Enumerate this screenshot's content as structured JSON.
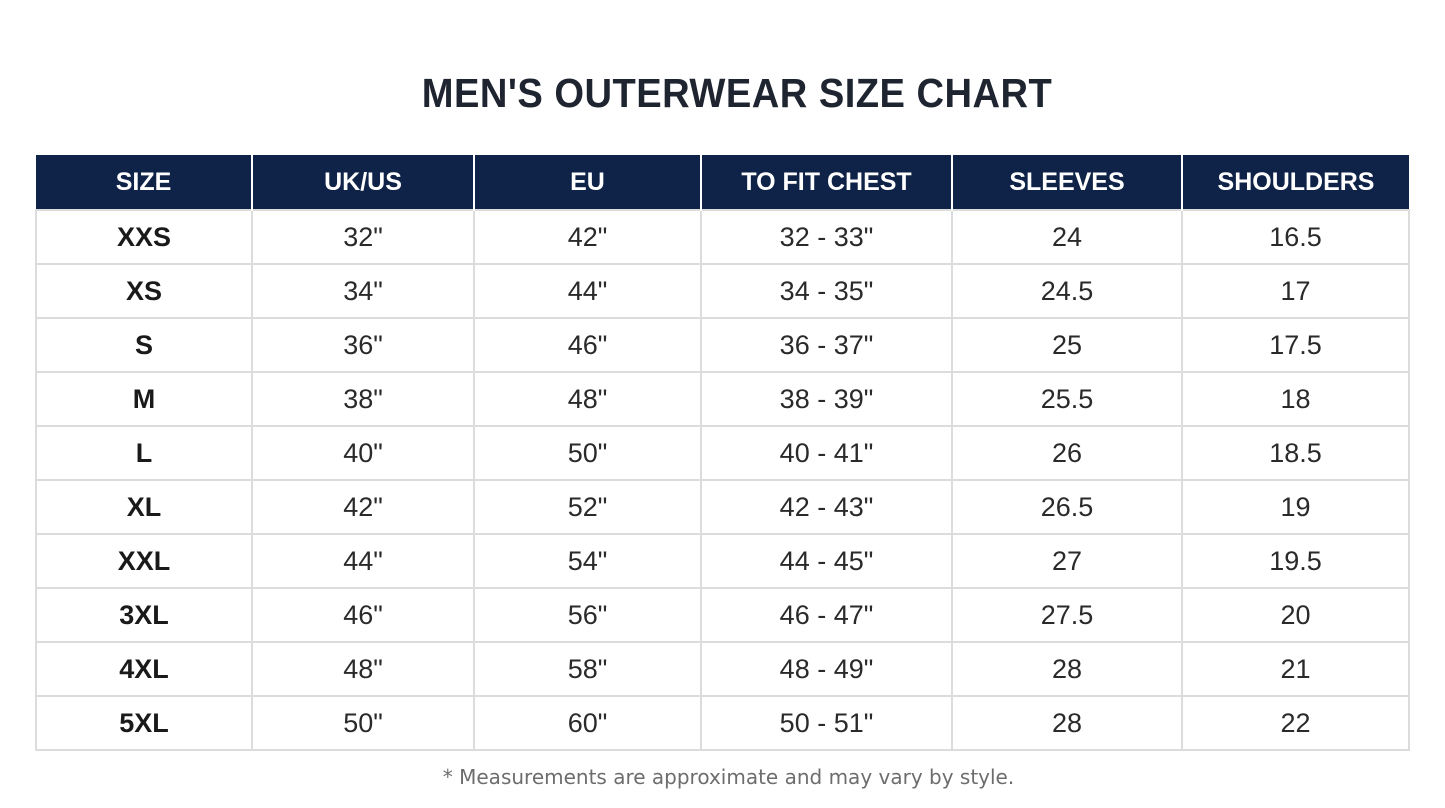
{
  "title": "MEN'S OUTERWEAR SIZE CHART",
  "colors": {
    "header_background": "#0e2347",
    "header_text": "#ffffff",
    "grid_lines": "#dcdcdc"
  },
  "table": {
    "headers": [
      "SIZE",
      "UK/US",
      "EU",
      "TO FIT CHEST",
      "SLEEVES",
      "SHOULDERS"
    ],
    "rows": [
      [
        "XXS",
        "32\"",
        "42\"",
        "32 - 33\"",
        "24",
        "16.5"
      ],
      [
        "XS",
        "34\"",
        "44\"",
        "34 - 35\"",
        "24.5",
        "17"
      ],
      [
        "S",
        "36\"",
        "46\"",
        "36 - 37\"",
        "25",
        "17.5"
      ],
      [
        "M",
        "38\"",
        "48\"",
        "38 - 39\"",
        "25.5",
        "18"
      ],
      [
        "L",
        "40\"",
        "50\"",
        "40 - 41\"",
        "26",
        "18.5"
      ],
      [
        "XL",
        "42\"",
        "52\"",
        "42 - 43\"",
        "26.5",
        "19"
      ],
      [
        "XXL",
        "44\"",
        "54\"",
        "44 - 45\"",
        "27",
        "19.5"
      ],
      [
        "3XL",
        "46\"",
        "56\"",
        "46 - 47\"",
        "27.5",
        "20"
      ],
      [
        "4XL",
        "48\"",
        "58\"",
        "48 - 49\"",
        "28",
        "21"
      ],
      [
        "5XL",
        "50\"",
        "60\"",
        "50 - 51\"",
        "28",
        "22"
      ]
    ]
  },
  "footnote": "* Measurements are approximate and may vary by style."
}
